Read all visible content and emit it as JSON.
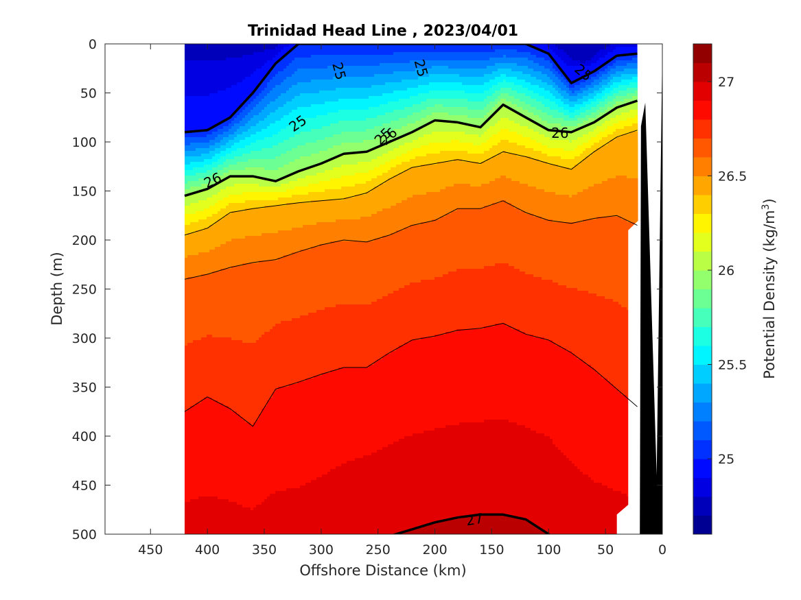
{
  "chart_data": {
    "type": "contour",
    "title": "Trinidad Head Line , 2023/04/01",
    "xlabel": "Offshore Distance (km)",
    "ylabel": "Depth (m)",
    "colorbar_label": "Potential Density (kg/m",
    "colorbar_label_sup": "3",
    "colorbar_label_close": ")",
    "xlim": [
      490,
      0
    ],
    "ylim": [
      0,
      500
    ],
    "x_ticks": [
      "450",
      "400",
      "350",
      "300",
      "250",
      "200",
      "150",
      "100",
      "50",
      "0"
    ],
    "y_ticks": [
      "0",
      "50",
      "100",
      "150",
      "200",
      "250",
      "300",
      "350",
      "400",
      "450",
      "500"
    ],
    "colorbar_ticks": [
      "25",
      "25.5",
      "26",
      "26.5",
      "27"
    ],
    "colorbar_range": [
      24.6,
      27.2
    ],
    "colorbar_levels": 26,
    "labeled_contours": [
      "25",
      "25",
      "25",
      "25",
      "25",
      "26",
      "26",
      "26",
      "27"
    ],
    "data_extent_km": [
      420,
      22
    ],
    "stations_km": [
      420,
      400,
      380,
      360,
      340,
      320,
      300,
      280,
      260,
      240,
      220,
      200,
      180,
      160,
      140,
      120,
      100,
      80,
      60,
      40,
      22
    ],
    "isopycnals": [
      {
        "value": 25.0,
        "depth_m": [
          90,
          88,
          75,
          50,
          20,
          0,
          0,
          0,
          0,
          0,
          0,
          0,
          0,
          0,
          0,
          0,
          10,
          40,
          28,
          12,
          10
        ]
      },
      {
        "value": 26.0,
        "depth_m": [
          155,
          148,
          135,
          135,
          140,
          130,
          122,
          112,
          110,
          100,
          90,
          78,
          80,
          85,
          62,
          75,
          88,
          90,
          80,
          65,
          58
        ]
      },
      {
        "value": 26.4,
        "depth_m": [
          195,
          188,
          172,
          168,
          165,
          162,
          160,
          158,
          152,
          138,
          126,
          122,
          118,
          122,
          110,
          115,
          122,
          128,
          110,
          95,
          88
        ]
      },
      {
        "value": 26.6,
        "depth_m": [
          240,
          235,
          228,
          223,
          220,
          212,
          205,
          200,
          202,
          195,
          185,
          180,
          168,
          168,
          160,
          172,
          180,
          183,
          178,
          175,
          185
        ]
      },
      {
        "value": 26.8,
        "depth_m": [
          375,
          360,
          372,
          390,
          352,
          345,
          337,
          330,
          330,
          315,
          302,
          298,
          292,
          290,
          285,
          296,
          302,
          315,
          332,
          352,
          370
        ]
      },
      {
        "value": 27.0,
        "depth_m": [
          560,
          560,
          560,
          560,
          560,
          560,
          545,
          525,
          510,
          502,
          495,
          488,
          483,
          480,
          480,
          485,
          500,
          540,
          560,
          560,
          560
        ]
      }
    ],
    "surface_min_km": 70,
    "surface_min_value": 24.7,
    "bathymetry_km": [
      [
        40,
        500
      ],
      [
        40,
        480
      ],
      [
        30,
        470
      ],
      [
        30,
        190
      ],
      [
        21,
        180
      ],
      [
        22,
        0
      ],
      [
        20,
        0
      ],
      [
        15,
        60
      ],
      [
        5,
        440
      ],
      [
        0,
        500
      ]
    ],
    "grid": false
  }
}
